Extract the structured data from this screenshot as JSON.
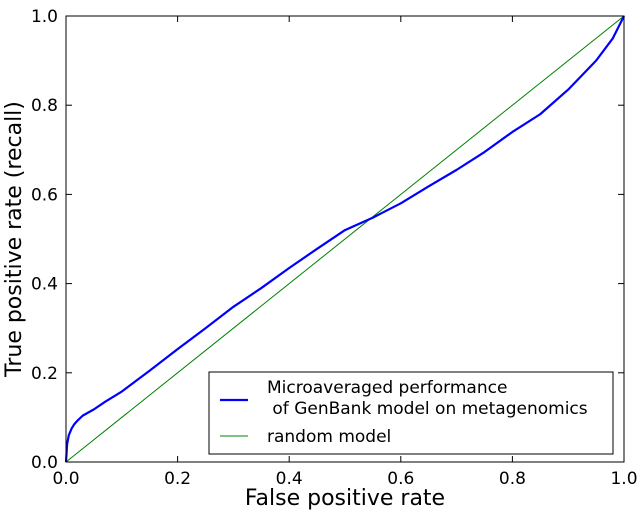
{
  "chart_data": {
    "type": "line",
    "xlabel": "False positive rate",
    "ylabel": "True positive rate (recall)",
    "xlim": [
      0.0,
      1.0
    ],
    "ylim": [
      0.0,
      1.0
    ],
    "xticks": [
      "0.0",
      "0.2",
      "0.4",
      "0.6",
      "0.8",
      "1.0"
    ],
    "yticks": [
      "0.0",
      "0.2",
      "0.4",
      "0.6",
      "0.8",
      "1.0"
    ],
    "grid": false,
    "legend_position": "lower-right",
    "series": [
      {
        "name_line1": "Microaveraged performance",
        "name_line2": " of GenBank model on metagenomics",
        "color": "#0000ff",
        "x": [
          0.0,
          0.002,
          0.005,
          0.01,
          0.015,
          0.02,
          0.03,
          0.05,
          0.07,
          0.1,
          0.15,
          0.2,
          0.25,
          0.3,
          0.35,
          0.4,
          0.45,
          0.5,
          0.55,
          0.6,
          0.65,
          0.7,
          0.75,
          0.8,
          0.85,
          0.9,
          0.95,
          0.98,
          1.0
        ],
        "y": [
          0.0,
          0.04,
          0.06,
          0.075,
          0.085,
          0.092,
          0.104,
          0.118,
          0.135,
          0.158,
          0.205,
          0.253,
          0.3,
          0.348,
          0.39,
          0.435,
          0.478,
          0.52,
          0.548,
          0.58,
          0.618,
          0.655,
          0.695,
          0.74,
          0.78,
          0.835,
          0.9,
          0.95,
          1.0
        ]
      },
      {
        "name": "random model",
        "color": "#008000",
        "x": [
          0.0,
          1.0
        ],
        "y": [
          0.0,
          1.0
        ]
      }
    ]
  }
}
